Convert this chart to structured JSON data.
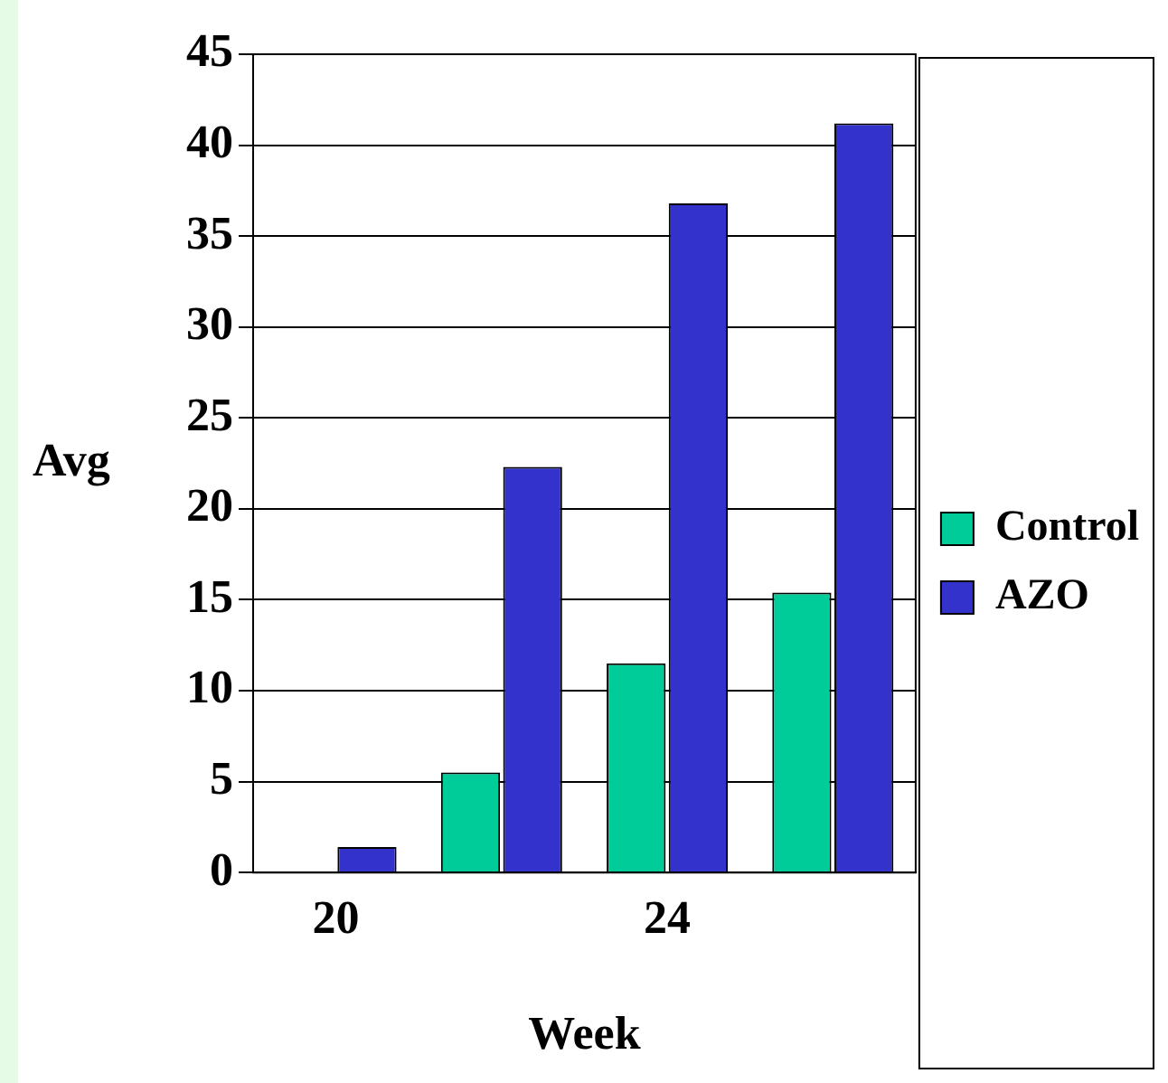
{
  "chart_data": {
    "type": "bar",
    "xlabel": "Week",
    "ylabel": "Avg",
    "categories": [
      "20",
      null,
      "24",
      null
    ],
    "series": [
      {
        "name": "Control",
        "color": "#00cc99",
        "values": [
          0,
          5.5,
          11.5,
          15.4
        ]
      },
      {
        "name": "AZO",
        "color": "#3333cc",
        "values": [
          1.4,
          22.3,
          36.8,
          41.2
        ]
      }
    ],
    "ylim": [
      0,
      45
    ],
    "yticks": [
      0,
      5,
      10,
      15,
      20,
      25,
      30,
      35,
      40,
      45
    ],
    "grid": "y",
    "legend": "right"
  }
}
